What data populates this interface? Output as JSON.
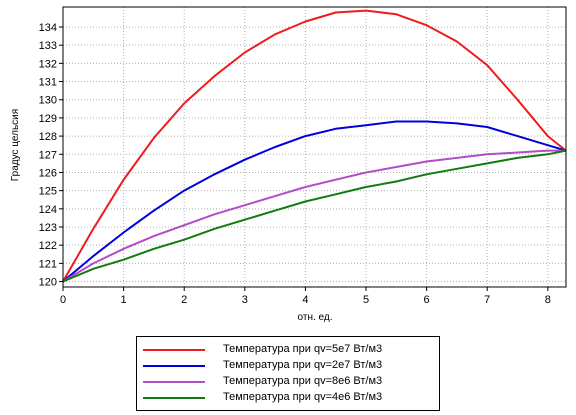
{
  "chart_data": {
    "type": "line",
    "xlabel": "отн. ед.",
    "ylabel": "Градус цельсия",
    "xlim": [
      0,
      8.3
    ],
    "ylim": [
      119.7,
      135.1
    ],
    "xticks": [
      0,
      1,
      2,
      3,
      4,
      5,
      6,
      7,
      8
    ],
    "yticks": [
      120,
      121,
      122,
      123,
      124,
      125,
      126,
      127,
      128,
      129,
      130,
      131,
      132,
      133,
      134
    ],
    "grid": true,
    "legend_position": "bottom",
    "series": [
      {
        "name": "Температура при qv=5e7 Вт/м3",
        "color": "#ee1c1c",
        "x": [
          0,
          0.5,
          1,
          1.5,
          2,
          2.5,
          3,
          3.5,
          4,
          4.5,
          5,
          5.5,
          6,
          6.5,
          7,
          7.5,
          8,
          8.3
        ],
        "y": [
          120,
          122.9,
          125.6,
          127.9,
          129.8,
          131.3,
          132.6,
          133.6,
          134.3,
          134.8,
          134.9,
          134.7,
          134.1,
          133.2,
          131.9,
          130.0,
          128.0,
          127.2
        ]
      },
      {
        "name": "Температура при qv=2e7 Вт/м3",
        "color": "#0000dd",
        "x": [
          0,
          0.5,
          1,
          1.5,
          2,
          2.5,
          3,
          3.5,
          4,
          4.5,
          5,
          5.5,
          6,
          6.5,
          7,
          7.5,
          8,
          8.3
        ],
        "y": [
          120,
          121.4,
          122.7,
          123.9,
          125.0,
          125.9,
          126.7,
          127.4,
          128.0,
          128.4,
          128.6,
          128.8,
          128.8,
          128.7,
          128.5,
          128.0,
          127.5,
          127.2
        ]
      },
      {
        "name": "Температура при qv=8e6 Вт/м3",
        "color": "#b24cc8",
        "x": [
          0,
          0.5,
          1,
          1.5,
          2,
          2.5,
          3,
          3.5,
          4,
          4.5,
          5,
          5.5,
          6,
          6.5,
          7,
          7.5,
          8,
          8.3
        ],
        "y": [
          120,
          121.0,
          121.8,
          122.5,
          123.1,
          123.7,
          124.2,
          124.7,
          125.2,
          125.6,
          126.0,
          126.3,
          126.6,
          126.8,
          127.0,
          127.1,
          127.2,
          127.2
        ]
      },
      {
        "name": " Температура при qv=4e6 Вт/м3",
        "color": "#107c10",
        "x": [
          0,
          0.5,
          1,
          1.5,
          2,
          2.5,
          3,
          3.5,
          4,
          4.5,
          5,
          5.5,
          6,
          6.5,
          7,
          7.5,
          8,
          8.3
        ],
        "y": [
          120,
          120.7,
          121.2,
          121.8,
          122.3,
          122.9,
          123.4,
          123.9,
          124.4,
          124.8,
          125.2,
          125.5,
          125.9,
          126.2,
          126.5,
          126.8,
          127.0,
          127.2
        ]
      }
    ]
  }
}
